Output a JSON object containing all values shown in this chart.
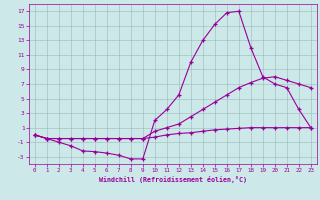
{
  "xlabel": "Windchill (Refroidissement éolien,°C)",
  "bg_color": "#cce8e8",
  "line_color": "#990099",
  "xlim": [
    -0.5,
    23.5
  ],
  "ylim": [
    -4,
    18
  ],
  "yticks": [
    -3,
    -1,
    1,
    3,
    5,
    7,
    9,
    11,
    13,
    15,
    17
  ],
  "xticks": [
    0,
    1,
    2,
    3,
    4,
    5,
    6,
    7,
    8,
    9,
    10,
    11,
    12,
    13,
    14,
    15,
    16,
    17,
    18,
    19,
    20,
    21,
    22,
    23
  ],
  "line1_x": [
    0,
    1,
    2,
    3,
    4,
    5,
    6,
    7,
    8,
    9,
    10,
    11,
    12,
    13,
    14,
    15,
    16,
    17,
    18,
    19,
    20,
    21,
    22,
    23
  ],
  "line1_y": [
    0.0,
    -0.5,
    -1.0,
    -1.5,
    -2.2,
    -2.3,
    -2.5,
    -2.8,
    -3.3,
    -3.3,
    2.0,
    3.5,
    5.5,
    10.0,
    13.0,
    15.2,
    16.8,
    17.0,
    12.0,
    8.0,
    7.0,
    6.5,
    3.5,
    1.0
  ],
  "line2_x": [
    0,
    1,
    2,
    3,
    4,
    5,
    6,
    7,
    8,
    9,
    10,
    11,
    12,
    13,
    14,
    15,
    16,
    17,
    18,
    19,
    20,
    21,
    22,
    23
  ],
  "line2_y": [
    0.0,
    -0.5,
    -0.5,
    -0.5,
    -0.5,
    -0.5,
    -0.5,
    -0.5,
    -0.5,
    -0.5,
    -0.3,
    0.0,
    0.2,
    0.3,
    0.5,
    0.7,
    0.8,
    0.9,
    1.0,
    1.0,
    1.0,
    1.0,
    1.0,
    1.0
  ],
  "line3_x": [
    0,
    1,
    2,
    3,
    4,
    5,
    6,
    7,
    8,
    9,
    10,
    11,
    12,
    13,
    14,
    15,
    16,
    17,
    18,
    19,
    20,
    21,
    22,
    23
  ],
  "line3_y": [
    0.0,
    -0.5,
    -0.5,
    -0.5,
    -0.5,
    -0.5,
    -0.5,
    -0.5,
    -0.5,
    -0.5,
    0.5,
    1.0,
    1.5,
    2.5,
    3.5,
    4.5,
    5.5,
    6.5,
    7.2,
    7.8,
    8.0,
    7.5,
    7.0,
    6.5
  ]
}
